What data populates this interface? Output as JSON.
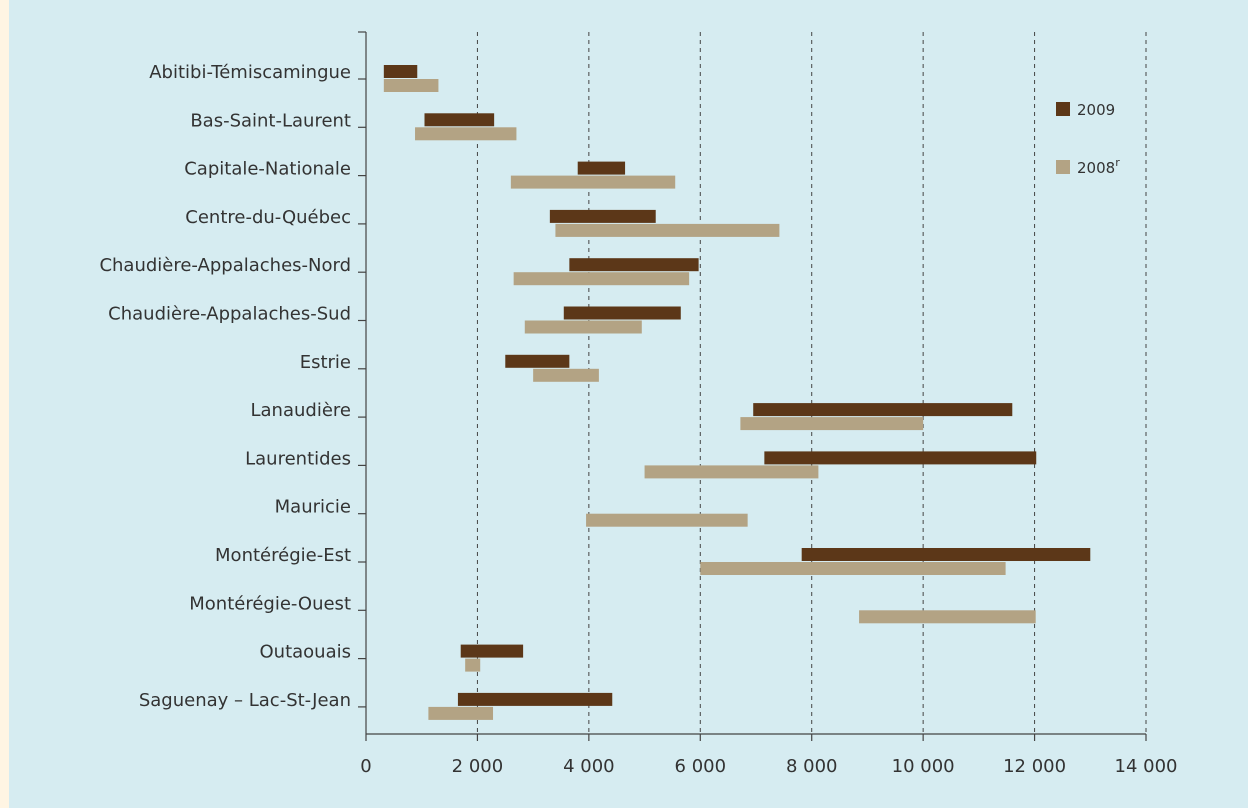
{
  "chart_data": {
    "type": "bar",
    "orientation": "horizontal",
    "bar_style": "floating range (start–end)",
    "title": "",
    "xlabel": "",
    "ylabel": "",
    "xlim": [
      0,
      14000
    ],
    "x_ticks": [
      0,
      2000,
      4000,
      6000,
      8000,
      10000,
      12000,
      14000
    ],
    "x_tick_labels": [
      "0",
      "2 000",
      "4 000",
      "6 000",
      "8 000",
      "10 000",
      "12 000",
      "14 000"
    ],
    "grid": "vertical dashed",
    "legend_position": "top-right",
    "categories": [
      "Abitibi-Témiscamingue",
      "Bas-Saint-Laurent",
      "Capitale-Nationale",
      "Centre-du-Québec",
      "Chaudière-Appalaches-Nord",
      "Chaudière-Appalaches-Sud",
      "Estrie",
      "Lanaudière",
      "Laurentides",
      "Mauricie",
      "Montérégie-Est",
      "Montérégie-Ouest",
      "Outaouais",
      "Saguenay – Lac-St-Jean"
    ],
    "series": [
      {
        "name": "2009",
        "label": "2009",
        "sup": "",
        "color": "#5c3718",
        "ranges": [
          [
            320,
            920
          ],
          [
            1050,
            2300
          ],
          [
            3800,
            4650
          ],
          [
            3300,
            5200
          ],
          [
            3650,
            5970
          ],
          [
            3550,
            5650
          ],
          [
            2500,
            3650
          ],
          [
            6950,
            11600
          ],
          [
            7150,
            12030
          ],
          null,
          [
            7820,
            13000
          ],
          null,
          [
            1700,
            2820
          ],
          [
            1650,
            4420
          ]
        ]
      },
      {
        "name": "2008r",
        "label": "2008",
        "sup": "r",
        "color": "#b3a384",
        "ranges": [
          [
            320,
            1300
          ],
          [
            880,
            2700
          ],
          [
            2600,
            5550
          ],
          [
            3400,
            7420
          ],
          [
            2650,
            5800
          ],
          [
            2850,
            4950
          ],
          [
            3000,
            4180
          ],
          [
            6720,
            10000
          ],
          [
            5000,
            8120
          ],
          [
            3950,
            6850
          ],
          [
            6000,
            11480
          ],
          [
            8850,
            12020
          ],
          [
            1780,
            2050
          ],
          [
            1120,
            2280
          ]
        ]
      }
    ]
  }
}
